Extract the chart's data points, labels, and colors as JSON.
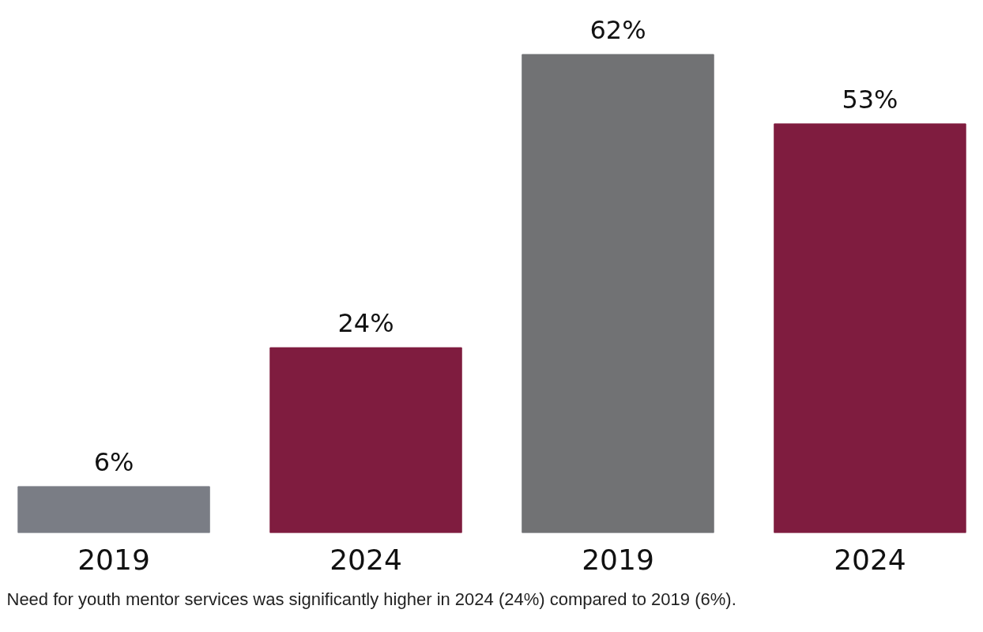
{
  "chart_data": {
    "type": "bar",
    "categories": [
      "2019",
      "2024",
      "2019",
      "2024"
    ],
    "values": [
      6,
      24,
      62,
      53
    ],
    "colors": [
      "#7a7d85",
      "#7f1c3f",
      "#717274",
      "#7f1c3f"
    ],
    "value_labels": [
      "6%",
      "24%",
      "62%",
      "53%"
    ],
    "grid": false,
    "annotations": [
      "Need for youth mentor services was significantly higher in 2024 (24%) compared to 2019 (6%)."
    ]
  }
}
